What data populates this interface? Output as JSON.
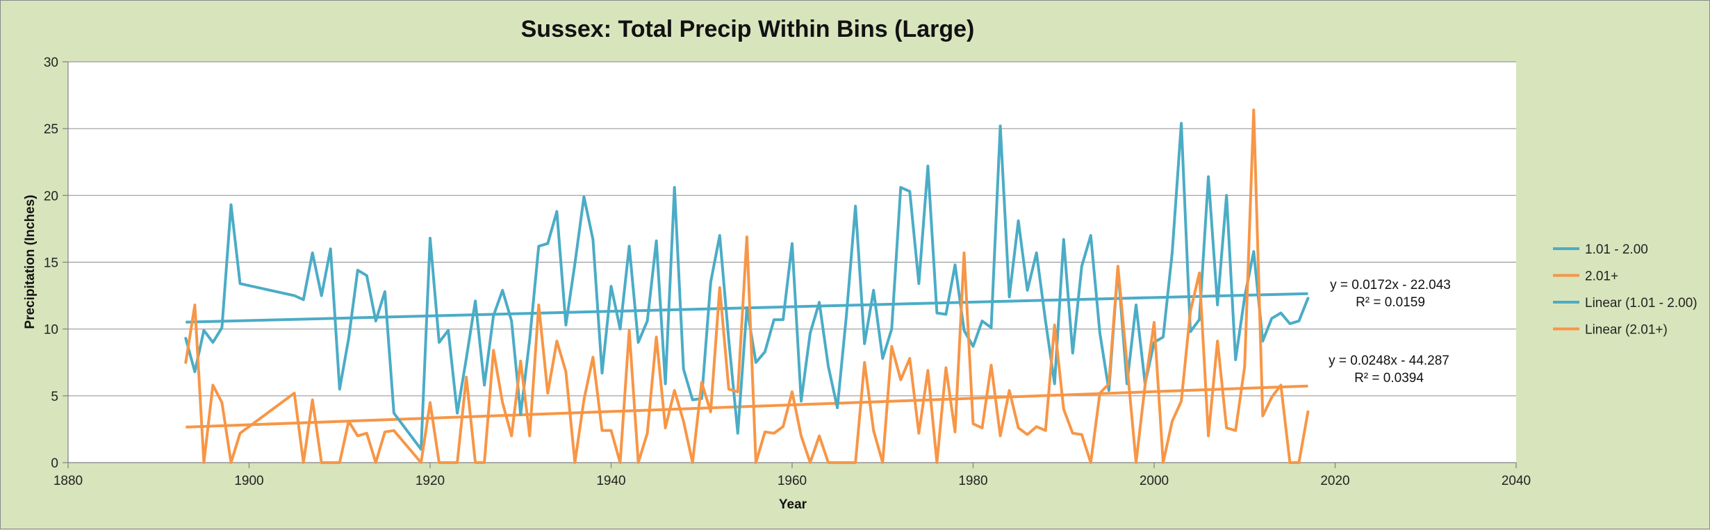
{
  "chart_data": {
    "type": "line",
    "title": "Sussex: Total Precip Within Bins (Large)",
    "xlabel": "Year",
    "ylabel": "Precipitation (Inches)",
    "xlim": [
      1880,
      2040
    ],
    "ylim": [
      0,
      30
    ],
    "xticks": [
      "1880",
      "1900",
      "1920",
      "1940",
      "1960",
      "1980",
      "2000",
      "2020",
      "2040"
    ],
    "yticks": [
      "0",
      "5",
      "10",
      "15",
      "20",
      "25",
      "30"
    ],
    "grid": "horizontal",
    "legend_position": "right",
    "series": [
      {
        "name": "1.01 - 2.00",
        "color": "#4bacc6",
        "points": [
          [
            1893,
            9.3
          ],
          [
            1894,
            6.8
          ],
          [
            1895,
            9.9
          ],
          [
            1896,
            9.0
          ],
          [
            1897,
            10.1
          ],
          [
            1898,
            19.3
          ],
          [
            1899,
            13.4
          ],
          [
            1905,
            12.5
          ],
          [
            1906,
            12.2
          ],
          [
            1907,
            15.7
          ],
          [
            1908,
            12.5
          ],
          [
            1909,
            16.0
          ],
          [
            1910,
            5.5
          ],
          [
            1911,
            9.3
          ],
          [
            1912,
            14.4
          ],
          [
            1913,
            14.0
          ],
          [
            1914,
            10.6
          ],
          [
            1915,
            12.8
          ],
          [
            1916,
            3.7
          ],
          [
            1919,
            1.0
          ],
          [
            1920,
            16.8
          ],
          [
            1921,
            9.0
          ],
          [
            1922,
            9.9
          ],
          [
            1923,
            3.7
          ],
          [
            1924,
            7.8
          ],
          [
            1925,
            12.1
          ],
          [
            1926,
            5.8
          ],
          [
            1927,
            11.0
          ],
          [
            1928,
            12.9
          ],
          [
            1929,
            10.6
          ],
          [
            1930,
            3.6
          ],
          [
            1931,
            9.2
          ],
          [
            1932,
            16.2
          ],
          [
            1933,
            16.4
          ],
          [
            1934,
            18.8
          ],
          [
            1935,
            10.3
          ],
          [
            1936,
            14.9
          ],
          [
            1937,
            19.9
          ],
          [
            1938,
            16.7
          ],
          [
            1939,
            6.7
          ],
          [
            1940,
            13.2
          ],
          [
            1941,
            10.0
          ],
          [
            1942,
            16.2
          ],
          [
            1943,
            9.0
          ],
          [
            1944,
            10.6
          ],
          [
            1945,
            16.6
          ],
          [
            1946,
            5.9
          ],
          [
            1947,
            20.6
          ],
          [
            1948,
            7.0
          ],
          [
            1949,
            4.7
          ],
          [
            1950,
            4.8
          ],
          [
            1951,
            13.5
          ],
          [
            1952,
            17.0
          ],
          [
            1953,
            9.2
          ],
          [
            1954,
            2.2
          ],
          [
            1955,
            11.6
          ],
          [
            1956,
            7.5
          ],
          [
            1957,
            8.3
          ],
          [
            1958,
            10.7
          ],
          [
            1959,
            10.7
          ],
          [
            1960,
            16.4
          ],
          [
            1961,
            4.6
          ],
          [
            1962,
            9.7
          ],
          [
            1963,
            12.0
          ],
          [
            1964,
            7.2
          ],
          [
            1965,
            4.1
          ],
          [
            1966,
            11.0
          ],
          [
            1967,
            19.2
          ],
          [
            1968,
            8.9
          ],
          [
            1969,
            12.9
          ],
          [
            1970,
            7.8
          ],
          [
            1971,
            10.0
          ],
          [
            1972,
            20.6
          ],
          [
            1973,
            20.3
          ],
          [
            1974,
            13.4
          ],
          [
            1975,
            22.2
          ],
          [
            1976,
            11.2
          ],
          [
            1977,
            11.1
          ],
          [
            1978,
            14.8
          ],
          [
            1979,
            9.9
          ],
          [
            1980,
            8.7
          ],
          [
            1981,
            10.6
          ],
          [
            1982,
            10.1
          ],
          [
            1983,
            25.2
          ],
          [
            1984,
            12.4
          ],
          [
            1985,
            18.1
          ],
          [
            1986,
            12.9
          ],
          [
            1987,
            15.7
          ],
          [
            1988,
            10.6
          ],
          [
            1989,
            5.9
          ],
          [
            1990,
            16.7
          ],
          [
            1991,
            8.2
          ],
          [
            1992,
            14.7
          ],
          [
            1993,
            17.0
          ],
          [
            1994,
            9.7
          ],
          [
            1995,
            5.4
          ],
          [
            1996,
            14.6
          ],
          [
            1997,
            5.9
          ],
          [
            1998,
            11.8
          ],
          [
            1999,
            5.9
          ],
          [
            2000,
            9.0
          ],
          [
            2001,
            9.4
          ],
          [
            2002,
            15.7
          ],
          [
            2003,
            25.4
          ],
          [
            2004,
            9.8
          ],
          [
            2005,
            10.7
          ],
          [
            2006,
            21.4
          ],
          [
            2007,
            11.8
          ],
          [
            2008,
            20.0
          ],
          [
            2009,
            7.7
          ],
          [
            2010,
            12.4
          ],
          [
            2011,
            15.8
          ],
          [
            2012,
            9.1
          ],
          [
            2013,
            10.8
          ],
          [
            2014,
            11.2
          ],
          [
            2015,
            10.4
          ],
          [
            2016,
            10.6
          ],
          [
            2017,
            12.3
          ]
        ]
      },
      {
        "name": "2.01+",
        "color": "#f79646",
        "points": [
          [
            1893,
            7.5
          ],
          [
            1894,
            11.8
          ],
          [
            1895,
            0.0
          ],
          [
            1896,
            5.8
          ],
          [
            1897,
            4.5
          ],
          [
            1898,
            0.0
          ],
          [
            1899,
            2.2
          ],
          [
            1905,
            5.2
          ],
          [
            1906,
            0.0
          ],
          [
            1907,
            4.7
          ],
          [
            1908,
            0.0
          ],
          [
            1909,
            0.0
          ],
          [
            1910,
            0.0
          ],
          [
            1911,
            3.1
          ],
          [
            1912,
            2.0
          ],
          [
            1913,
            2.2
          ],
          [
            1914,
            0.0
          ],
          [
            1915,
            2.3
          ],
          [
            1916,
            2.4
          ],
          [
            1919,
            0.0
          ],
          [
            1920,
            4.5
          ],
          [
            1921,
            0.0
          ],
          [
            1922,
            0.0
          ],
          [
            1923,
            0.0
          ],
          [
            1924,
            6.4
          ],
          [
            1925,
            0.0
          ],
          [
            1926,
            0.0
          ],
          [
            1927,
            8.4
          ],
          [
            1928,
            4.5
          ],
          [
            1929,
            2.0
          ],
          [
            1930,
            7.6
          ],
          [
            1931,
            2.0
          ],
          [
            1932,
            11.8
          ],
          [
            1933,
            5.2
          ],
          [
            1934,
            9.1
          ],
          [
            1935,
            6.8
          ],
          [
            1936,
            0.0
          ],
          [
            1937,
            4.7
          ],
          [
            1938,
            7.9
          ],
          [
            1939,
            2.4
          ],
          [
            1940,
            2.4
          ],
          [
            1941,
            0.0
          ],
          [
            1942,
            9.9
          ],
          [
            1943,
            0.0
          ],
          [
            1944,
            2.2
          ],
          [
            1945,
            9.4
          ],
          [
            1946,
            2.6
          ],
          [
            1947,
            5.4
          ],
          [
            1948,
            3.1
          ],
          [
            1949,
            0.0
          ],
          [
            1950,
            6.0
          ],
          [
            1951,
            3.8
          ],
          [
            1952,
            13.1
          ],
          [
            1953,
            5.5
          ],
          [
            1954,
            5.3
          ],
          [
            1955,
            16.9
          ],
          [
            1956,
            0.0
          ],
          [
            1957,
            2.3
          ],
          [
            1958,
            2.2
          ],
          [
            1959,
            2.7
          ],
          [
            1960,
            5.3
          ],
          [
            1961,
            2.0
          ],
          [
            1962,
            0.0
          ],
          [
            1963,
            2.0
          ],
          [
            1964,
            0.0
          ],
          [
            1965,
            0.0
          ],
          [
            1966,
            0.0
          ],
          [
            1967,
            0.0
          ],
          [
            1968,
            7.5
          ],
          [
            1969,
            2.4
          ],
          [
            1970,
            0.0
          ],
          [
            1971,
            8.7
          ],
          [
            1972,
            6.2
          ],
          [
            1973,
            7.8
          ],
          [
            1974,
            2.2
          ],
          [
            1975,
            6.9
          ],
          [
            1976,
            0.0
          ],
          [
            1977,
            7.1
          ],
          [
            1978,
            2.3
          ],
          [
            1979,
            15.7
          ],
          [
            1980,
            2.9
          ],
          [
            1981,
            2.6
          ],
          [
            1982,
            7.3
          ],
          [
            1983,
            2.0
          ],
          [
            1984,
            5.4
          ],
          [
            1985,
            2.6
          ],
          [
            1986,
            2.1
          ],
          [
            1987,
            2.7
          ],
          [
            1988,
            2.4
          ],
          [
            1989,
            10.3
          ],
          [
            1990,
            4.0
          ],
          [
            1991,
            2.2
          ],
          [
            1992,
            2.1
          ],
          [
            1993,
            0.0
          ],
          [
            1994,
            5.2
          ],
          [
            1995,
            5.9
          ],
          [
            1996,
            14.7
          ],
          [
            1997,
            7.4
          ],
          [
            1998,
            0.0
          ],
          [
            1999,
            5.8
          ],
          [
            2000,
            10.5
          ],
          [
            2001,
            0.0
          ],
          [
            2002,
            3.1
          ],
          [
            2003,
            4.6
          ],
          [
            2004,
            11.3
          ],
          [
            2005,
            14.2
          ],
          [
            2006,
            2.0
          ],
          [
            2007,
            9.1
          ],
          [
            2008,
            2.6
          ],
          [
            2009,
            2.4
          ],
          [
            2010,
            7.2
          ],
          [
            2011,
            26.4
          ],
          [
            2012,
            3.5
          ],
          [
            2013,
            4.9
          ],
          [
            2014,
            5.8
          ],
          [
            2015,
            0.0
          ],
          [
            2016,
            0.0
          ],
          [
            2017,
            3.8
          ]
        ]
      }
    ],
    "trendlines": [
      {
        "name": "Linear (1.01 - 2.00)",
        "color": "#4bacc6",
        "slope": 0.0172,
        "intercept": -22.043,
        "x_range": [
          1893,
          2017
        ],
        "equation": "y = 0.0172x - 22.043",
        "r2": "R² = 0.0159"
      },
      {
        "name": "Linear (2.01+)",
        "color": "#f79646",
        "slope": 0.0248,
        "intercept": -44.287,
        "x_range": [
          1893,
          2017
        ],
        "equation": "y = 0.0248x - 44.287",
        "r2": "R² = 0.0394"
      }
    ],
    "legend": [
      "1.01 - 2.00",
      "2.01+",
      "Linear (1.01 - 2.00)",
      "Linear (2.01+)"
    ]
  }
}
